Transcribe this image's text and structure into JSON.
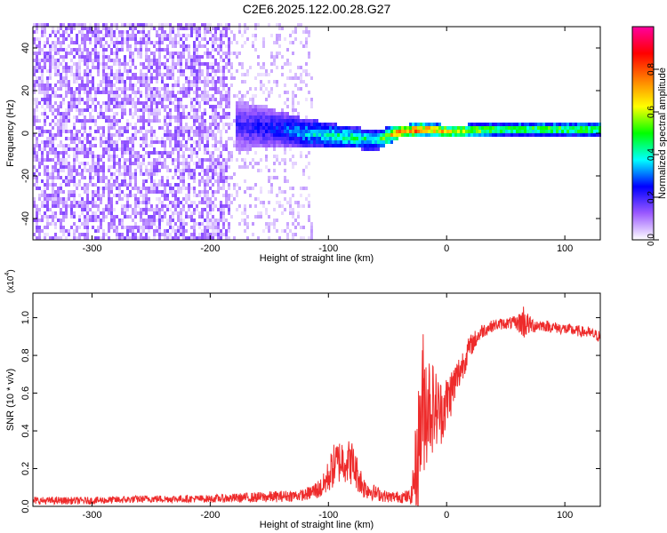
{
  "figure": {
    "title": "C2E6.2025.122.00.28.G27"
  },
  "chart_data": [
    {
      "type": "heatmap",
      "xlabel": "Height of straight line (km)",
      "ylabel": "Frequency (Hz)",
      "xlim": [
        -350,
        130
      ],
      "ylim": [
        -50,
        50
      ],
      "xticks": [
        -300,
        -200,
        -100,
        0,
        100
      ],
      "yticks": [
        -40,
        -20,
        0,
        20,
        40
      ],
      "colorbar": {
        "label": "Normalized spectral amplitude",
        "range": [
          0,
          1
        ],
        "ticks": [
          "0.0",
          "0.2",
          "0.4",
          "0.6",
          "0.8"
        ],
        "colormap": [
          "#ffffff",
          "#9b59ff",
          "#0000ff",
          "#00ffff",
          "#00ff00",
          "#ffff00",
          "#ff8000",
          "#ff0000",
          "#ff00a0"
        ]
      },
      "features": {
        "noise_region_x": [
          -350,
          -115
        ],
        "dense_noise_region_x": [
          -350,
          -185
        ],
        "signal_band": [
          {
            "x": -180,
            "center": 3,
            "halfwidth": 12,
            "amplitude": 0.2
          },
          {
            "x": -160,
            "center": 2,
            "halfwidth": 10,
            "amplitude": 0.25
          },
          {
            "x": -140,
            "center": 1,
            "halfwidth": 8,
            "amplitude": 0.3
          },
          {
            "x": -120,
            "center": -1,
            "halfwidth": 7,
            "amplitude": 0.4
          },
          {
            "x": -100,
            "center": -2,
            "halfwidth": 6,
            "amplitude": 0.45
          },
          {
            "x": -80,
            "center": -3,
            "halfwidth": 5,
            "amplitude": 0.5
          },
          {
            "x": -60,
            "center": -4,
            "halfwidth": 5,
            "amplitude": 0.45
          },
          {
            "x": -40,
            "center": 0,
            "halfwidth": 3,
            "amplitude": 0.9
          },
          {
            "x": -20,
            "center": 1,
            "halfwidth": 3,
            "amplitude": 0.85
          },
          {
            "x": 0,
            "center": 0,
            "halfwidth": 3,
            "amplitude": 0.75
          },
          {
            "x": 50,
            "center": 1,
            "halfwidth": 3,
            "amplitude": 0.55
          },
          {
            "x": 100,
            "center": 1,
            "halfwidth": 3,
            "amplitude": 0.6
          },
          {
            "x": 130,
            "center": 1,
            "halfwidth": 3,
            "amplitude": 0.6
          }
        ]
      }
    },
    {
      "type": "line",
      "xlabel": "Height of straight line (km)",
      "ylabel": "SNR (10 * v/v)",
      "yscale_label": "(x10^4)",
      "xlim": [
        -350,
        130
      ],
      "ylim": [
        0,
        1.13
      ],
      "xticks": [
        -300,
        -200,
        -100,
        0,
        100
      ],
      "yticks": [
        "0.0",
        "0.2",
        "0.4",
        "0.6",
        "0.8",
        "1.0"
      ],
      "color": "#ee2b2b",
      "envelope": {
        "x": [
          -350,
          -300,
          -250,
          -200,
          -150,
          -120,
          -105,
          -95,
          -88,
          -80,
          -70,
          -60,
          -50,
          -40,
          -30,
          -25,
          -20,
          -15,
          -10,
          -5,
          0,
          10,
          20,
          30,
          40,
          50,
          60,
          65,
          70,
          80,
          90,
          100,
          110,
          120,
          130
        ],
        "mean": [
          0.03,
          0.03,
          0.04,
          0.04,
          0.05,
          0.06,
          0.1,
          0.22,
          0.25,
          0.23,
          0.1,
          0.07,
          0.05,
          0.05,
          0.05,
          0.25,
          0.55,
          0.55,
          0.52,
          0.5,
          0.55,
          0.7,
          0.85,
          0.93,
          0.96,
          0.97,
          0.97,
          0.98,
          0.96,
          0.96,
          0.95,
          0.94,
          0.93,
          0.92,
          0.9
        ],
        "noise": [
          0.02,
          0.02,
          0.02,
          0.02,
          0.03,
          0.03,
          0.06,
          0.12,
          0.12,
          0.12,
          0.06,
          0.04,
          0.03,
          0.03,
          0.04,
          0.3,
          0.4,
          0.3,
          0.22,
          0.18,
          0.15,
          0.1,
          0.06,
          0.04,
          0.03,
          0.03,
          0.04,
          0.1,
          0.05,
          0.03,
          0.03,
          0.03,
          0.03,
          0.03,
          0.03
        ]
      }
    }
  ]
}
